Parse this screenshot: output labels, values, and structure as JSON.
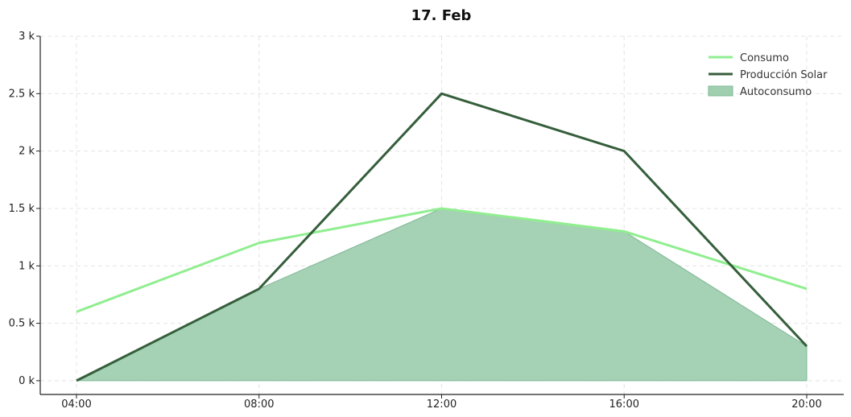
{
  "chart_data": {
    "type": "line",
    "title": "17. Feb",
    "xlabel": "",
    "ylabel": "",
    "categories": [
      "04:00",
      "08:00",
      "12:00",
      "16:00",
      "20:00"
    ],
    "ylim": [
      -120,
      3000
    ],
    "yticks": [
      0,
      500,
      1000,
      1500,
      2000,
      2500,
      3000
    ],
    "ytick_labels": [
      "0 k",
      "0.5 k",
      "1 k",
      "1.5 k",
      "2 k",
      "2.5 k",
      "3 k"
    ],
    "grid": true,
    "legend_position": "top-right",
    "series": [
      {
        "name": "Consumo",
        "kind": "line",
        "color": "#90ee90",
        "values": [
          600,
          1200,
          1500,
          1300,
          800
        ]
      },
      {
        "name": "Producción Solar",
        "kind": "line",
        "color": "#355e3b",
        "values": [
          0,
          800,
          2500,
          2000,
          300
        ]
      },
      {
        "name": "Autoconsumo",
        "kind": "area",
        "color": "#a0cfb0",
        "values": [
          0,
          800,
          1500,
          1300,
          300
        ]
      }
    ]
  }
}
